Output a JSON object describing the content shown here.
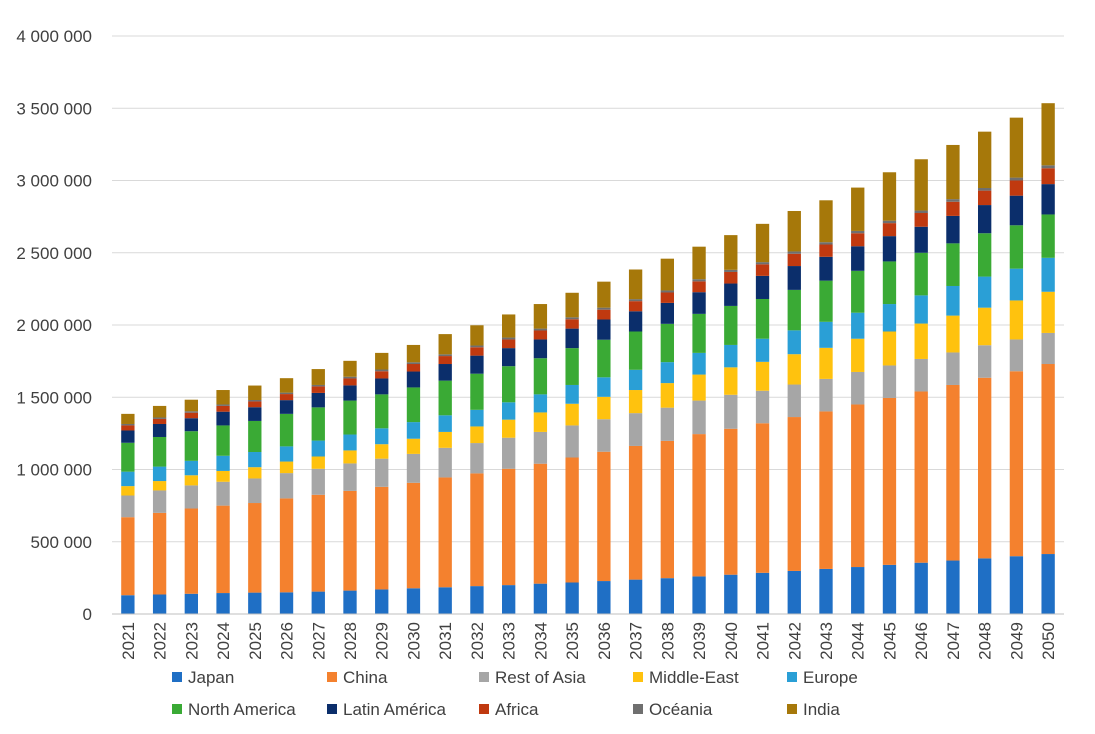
{
  "chart_data": {
    "type": "bar",
    "stacked": true,
    "title": "",
    "xlabel": "",
    "ylabel": "",
    "ylim": [
      0,
      4000000
    ],
    "yticks": [
      0,
      500000,
      1000000,
      1500000,
      2000000,
      2500000,
      3000000,
      3500000,
      4000000
    ],
    "ytick_labels": [
      "0",
      "500 000",
      "1 000 000",
      "1 500 000",
      "2 000 000",
      "2 500 000",
      "3 000 000",
      "3 500 000",
      "4 000 000"
    ],
    "grid": "horizontal",
    "legend_position": "bottom",
    "categories": [
      "2021",
      "2022",
      "2023",
      "2024",
      "2025",
      "2026",
      "2027",
      "2028",
      "2029",
      "2030",
      "2031",
      "2032",
      "2033",
      "2034",
      "2035",
      "2036",
      "2037",
      "2038",
      "2039",
      "2040",
      "2041",
      "2042",
      "2043",
      "2044",
      "2045",
      "2046",
      "2047",
      "2048",
      "2049",
      "2050"
    ],
    "series": [
      {
        "name": "Japan",
        "color": "#1f6fc5",
        "values": [
          130000,
          135000,
          140000,
          145000,
          148000,
          150000,
          155000,
          162000,
          170000,
          178000,
          185000,
          193000,
          200000,
          210000,
          218000,
          228000,
          238000,
          248000,
          260000,
          272000,
          285000,
          298000,
          312000,
          325000,
          340000,
          355000,
          370000,
          385000,
          400000,
          415000
        ]
      },
      {
        "name": "China",
        "color": "#f4812e",
        "values": [
          540000,
          565000,
          590000,
          605000,
          620000,
          650000,
          670000,
          690000,
          710000,
          730000,
          760000,
          780000,
          805000,
          830000,
          865000,
          895000,
          925000,
          950000,
          985000,
          1010000,
          1035000,
          1065000,
          1090000,
          1125000,
          1155000,
          1185000,
          1215000,
          1250000,
          1280000,
          1315000
        ]
      },
      {
        "name": "Rest of Asia",
        "color": "#a6a6a6",
        "values": [
          150000,
          155000,
          160000,
          165000,
          170000,
          175000,
          180000,
          190000,
          195000,
          200000,
          205000,
          210000,
          215000,
          220000,
          222000,
          225000,
          227000,
          230000,
          232000,
          235000,
          225000,
          225000,
          225000,
          225000,
          225000,
          225000,
          225000,
          225000,
          220000,
          215000
        ]
      },
      {
        "name": "Middle-East",
        "color": "#ffc20e",
        "values": [
          65000,
          65000,
          70000,
          75000,
          78000,
          80000,
          85000,
          90000,
          100000,
          105000,
          110000,
          115000,
          125000,
          135000,
          150000,
          155000,
          160000,
          170000,
          180000,
          190000,
          200000,
          210000,
          215000,
          230000,
          235000,
          245000,
          255000,
          260000,
          270000,
          285000
        ]
      },
      {
        "name": "Europe",
        "color": "#2a9fd6",
        "values": [
          100000,
          100000,
          100000,
          105000,
          105000,
          105000,
          110000,
          110000,
          110000,
          115000,
          115000,
          115000,
          120000,
          125000,
          130000,
          135000,
          140000,
          145000,
          150000,
          155000,
          160000,
          165000,
          180000,
          180000,
          190000,
          195000,
          205000,
          215000,
          220000,
          235000
        ]
      },
      {
        "name": "North America",
        "color": "#3aaa35",
        "values": [
          200000,
          205000,
          205000,
          210000,
          215000,
          225000,
          230000,
          235000,
          235000,
          240000,
          240000,
          250000,
          250000,
          250000,
          255000,
          260000,
          265000,
          265000,
          270000,
          270000,
          275000,
          280000,
          285000,
          290000,
          295000,
          295000,
          295000,
          300000,
          300000,
          300000
        ]
      },
      {
        "name": "Latin América",
        "color": "#0b2e6b",
        "values": [
          85000,
          90000,
          90000,
          95000,
          95000,
          95000,
          100000,
          105000,
          110000,
          110000,
          115000,
          125000,
          125000,
          130000,
          135000,
          140000,
          140000,
          145000,
          150000,
          155000,
          160000,
          165000,
          165000,
          170000,
          175000,
          180000,
          190000,
          195000,
          205000,
          210000
        ]
      },
      {
        "name": "Africa",
        "color": "#c0390f",
        "values": [
          35000,
          35000,
          38000,
          40000,
          40000,
          42000,
          45000,
          48000,
          50000,
          52000,
          55000,
          58000,
          60000,
          62000,
          65000,
          68000,
          70000,
          72000,
          75000,
          80000,
          80000,
          85000,
          85000,
          90000,
          90000,
          95000,
          98000,
          100000,
          105000,
          110000
        ]
      },
      {
        "name": "Océania",
        "color": "#6f6f6f",
        "values": [
          10000,
          10000,
          10000,
          10000,
          10000,
          10000,
          10000,
          12000,
          12000,
          12000,
          12000,
          12000,
          13000,
          13000,
          13000,
          14000,
          14000,
          14000,
          15000,
          15000,
          15000,
          16000,
          16000,
          16000,
          17000,
          17000,
          18000,
          18000,
          20000,
          20000
        ]
      },
      {
        "name": "India",
        "color": "#a6780a",
        "values": [
          70000,
          80000,
          80000,
          100000,
          100000,
          100000,
          110000,
          110000,
          115000,
          120000,
          140000,
          140000,
          160000,
          170000,
          170000,
          180000,
          205000,
          220000,
          225000,
          240000,
          265000,
          280000,
          290000,
          300000,
          335000,
          355000,
          375000,
          390000,
          415000,
          430000
        ]
      }
    ]
  }
}
